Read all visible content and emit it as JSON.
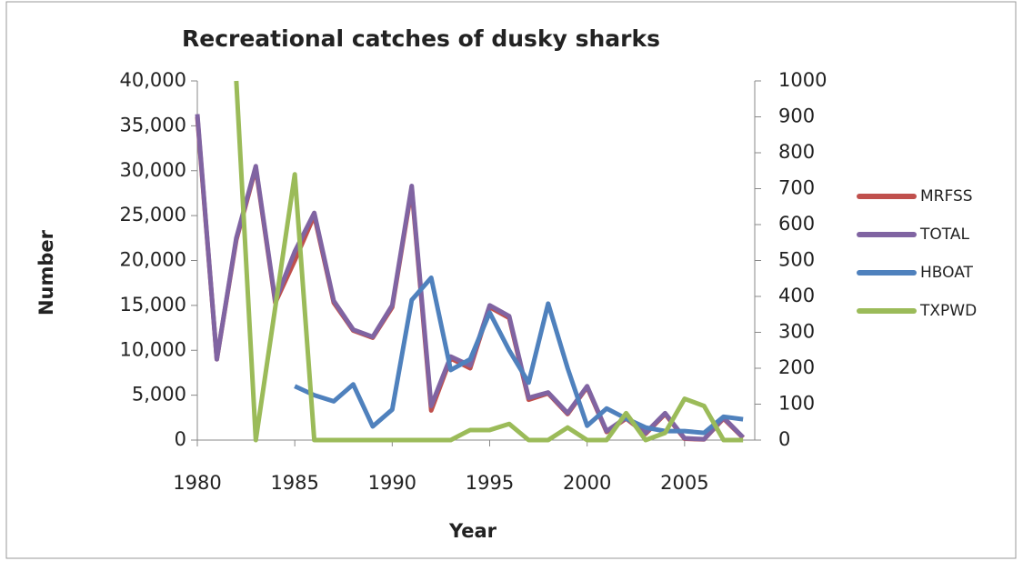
{
  "chart_data": {
    "type": "line",
    "title": "Recreational catches of dusky sharks",
    "x_label": "Year",
    "y_label": "Number",
    "x": [
      1980,
      1981,
      1982,
      1983,
      1984,
      1985,
      1986,
      1987,
      1988,
      1989,
      1990,
      1991,
      1992,
      1993,
      1994,
      1995,
      1996,
      1997,
      1998,
      1999,
      2000,
      2001,
      2002,
      2003,
      2004,
      2005,
      2006,
      2007,
      2008
    ],
    "xlim": [
      1980,
      2008.6
    ],
    "xticks": [
      1980,
      1985,
      1990,
      1995,
      2000,
      2005
    ],
    "ylim": [
      0,
      40000
    ],
    "yticks": [
      0,
      {
        "value": 5000,
        "label": "5,000"
      },
      {
        "value": 10000,
        "label": "10,000"
      },
      {
        "value": 15000,
        "label": "15,000"
      },
      {
        "value": 20000,
        "label": "20,000"
      },
      {
        "value": 25000,
        "label": "25,000"
      },
      {
        "value": 30000,
        "label": "30,000"
      },
      {
        "value": 35000,
        "label": "35,000"
      },
      {
        "value": 40000,
        "label": "40,000"
      }
    ],
    "y2lim": [
      0,
      1000
    ],
    "y2ticks": [
      0,
      100,
      200,
      300,
      400,
      500,
      600,
      700,
      800,
      900,
      1000
    ],
    "legend": "right",
    "series": [
      {
        "name": "MRFSS",
        "color": "#c0504d",
        "values": [
          36000,
          9000,
          22300,
          30300,
          15300,
          20000,
          25000,
          15300,
          12200,
          11400,
          14800,
          28000,
          3300,
          9100,
          8000,
          14800,
          13600,
          4500,
          5200,
          2900,
          5900,
          900,
          2400,
          700,
          2900,
          150,
          80,
          2400,
          250
        ]
      },
      {
        "name": "TOTAL",
        "color": "#8064a2",
        "values": [
          36300,
          9000,
          22500,
          30500,
          15500,
          21000,
          25300,
          15500,
          12300,
          11500,
          15000,
          28300,
          3800,
          9300,
          8300,
          15000,
          13800,
          4700,
          5300,
          3000,
          6000,
          1000,
          2500,
          800,
          3000,
          200,
          100,
          2500,
          300
        ]
      },
      {
        "name": "HBOAT",
        "color": "#4f81bd",
        "axis": "y2",
        "values": [
          null,
          null,
          null,
          null,
          null,
          150,
          125,
          108,
          155,
          38,
          85,
          390,
          452,
          195,
          225,
          355,
          250,
          160,
          380,
          200,
          40,
          88,
          60,
          35,
          25,
          25,
          20,
          65,
          58
        ]
      },
      {
        "name": "TXPWD",
        "color": "#9bbb59",
        "axis": "y2",
        "values": [
          null,
          null,
          1000,
          0,
          370,
          740,
          0,
          0,
          0,
          0,
          0,
          0,
          0,
          0,
          28,
          28,
          45,
          0,
          0,
          35,
          0,
          0,
          75,
          0,
          20,
          115,
          95,
          0,
          0
        ]
      }
    ]
  }
}
